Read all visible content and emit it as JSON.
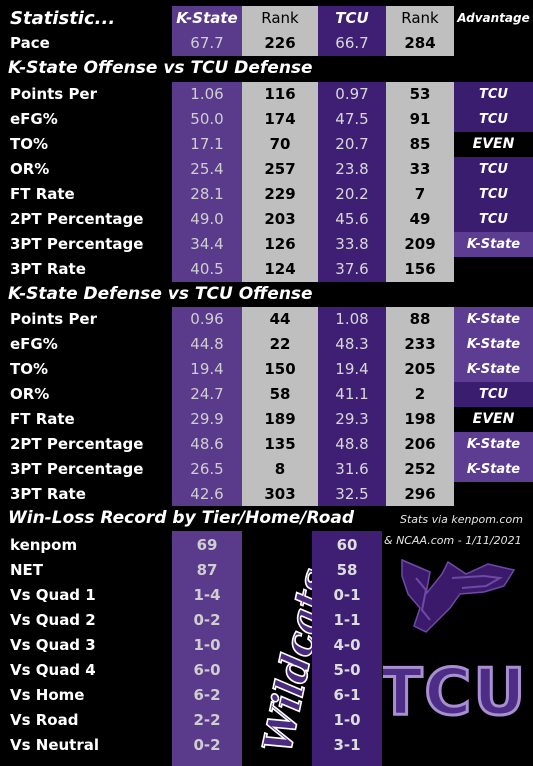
{
  "header": {
    "statistic": "Statistic...",
    "kstate": "K-State",
    "rank": "Rank",
    "tcu": "TCU",
    "rank2": "Rank",
    "advantage": "Advantage"
  },
  "pace": {
    "label": "Pace",
    "ks": "67.7",
    "ks_rank": "226",
    "tcu": "66.7",
    "tcu_rank": "284"
  },
  "section1_title": "K-State Offense vs TCU Defense",
  "offense": [
    {
      "label": "Points Per Possession",
      "ks": "1.06",
      "ks_rank": "116",
      "tcu": "0.97",
      "tcu_rank": "53",
      "adv": "TCU",
      "adv_type": "tcu"
    },
    {
      "label": "eFG%",
      "ks": "50.0",
      "ks_rank": "174",
      "tcu": "47.5",
      "tcu_rank": "91",
      "adv": "TCU",
      "adv_type": "tcu"
    },
    {
      "label": "TO%",
      "ks": "17.1",
      "ks_rank": "70",
      "tcu": "20.7",
      "tcu_rank": "85",
      "adv": "EVEN",
      "adv_type": "even"
    },
    {
      "label": "OR%",
      "ks": "25.4",
      "ks_rank": "257",
      "tcu": "23.8",
      "tcu_rank": "33",
      "adv": "TCU",
      "adv_type": "tcu"
    },
    {
      "label": "FT Rate",
      "ks": "28.1",
      "ks_rank": "229",
      "tcu": "20.2",
      "tcu_rank": "7",
      "adv": "TCU",
      "adv_type": "tcu"
    },
    {
      "label": "2PT Percentage",
      "ks": "49.0",
      "ks_rank": "203",
      "tcu": "45.6",
      "tcu_rank": "49",
      "adv": "TCU",
      "adv_type": "tcu"
    },
    {
      "label": "3PT Percentage",
      "ks": "34.4",
      "ks_rank": "126",
      "tcu": "33.8",
      "tcu_rank": "209",
      "adv": "K-State",
      "adv_type": "ks"
    },
    {
      "label": "3PT Rate",
      "ks": "40.5",
      "ks_rank": "124",
      "tcu": "37.6",
      "tcu_rank": "156",
      "adv": "",
      "adv_type": "none"
    }
  ],
  "section2_title": "K-State Defense vs TCU Offense",
  "defense": [
    {
      "label": "Points Per Possession",
      "ks": "0.96",
      "ks_rank": "44",
      "tcu": "1.08",
      "tcu_rank": "88",
      "adv": "K-State",
      "adv_type": "ks"
    },
    {
      "label": "eFG%",
      "ks": "44.8",
      "ks_rank": "22",
      "tcu": "48.3",
      "tcu_rank": "233",
      "adv": "K-State",
      "adv_type": "ks"
    },
    {
      "label": "TO%",
      "ks": "19.4",
      "ks_rank": "150",
      "tcu": "19.4",
      "tcu_rank": "205",
      "adv": "K-State",
      "adv_type": "ks"
    },
    {
      "label": "OR%",
      "ks": "24.7",
      "ks_rank": "58",
      "tcu": "41.1",
      "tcu_rank": "2",
      "adv": "TCU",
      "adv_type": "tcu"
    },
    {
      "label": "FT Rate",
      "ks": "29.9",
      "ks_rank": "189",
      "tcu": "29.3",
      "tcu_rank": "198",
      "adv": "EVEN",
      "adv_type": "even"
    },
    {
      "label": "2PT Percentage",
      "ks": "48.6",
      "ks_rank": "135",
      "tcu": "48.8",
      "tcu_rank": "206",
      "adv": "K-State",
      "adv_type": "ks"
    },
    {
      "label": "3PT Percentage",
      "ks": "26.5",
      "ks_rank": "8",
      "tcu": "31.6",
      "tcu_rank": "252",
      "adv": "K-State",
      "adv_type": "ks"
    },
    {
      "label": "3PT Rate",
      "ks": "42.6",
      "ks_rank": "303",
      "tcu": "32.5",
      "tcu_rank": "296",
      "adv": "",
      "adv_type": "none"
    }
  ],
  "section3_title": "Win-Loss Record by Tier/Home/Road",
  "credit_line1": "Stats via kenpom.com",
  "credit_line2": "& NCAA.com - 1/11/2021",
  "records": [
    {
      "label": "kenpom",
      "ks": "69",
      "tcu": "60"
    },
    {
      "label": "NET",
      "ks": "87",
      "tcu": "58"
    },
    {
      "label": "Vs Quad 1",
      "ks": "1-4",
      "tcu": "0-1"
    },
    {
      "label": "Vs Quad 2",
      "ks": "0-2",
      "tcu": "1-1"
    },
    {
      "label": "Vs Quad 3",
      "ks": "1-0",
      "tcu": "4-0"
    },
    {
      "label": "Vs Quad 4",
      "ks": "6-0",
      "tcu": "5-0"
    },
    {
      "label": "Vs Home",
      "ks": "6-2",
      "tcu": "6-1"
    },
    {
      "label": "Vs Road",
      "ks": "2-2",
      "tcu": "1-0"
    },
    {
      "label": "Vs Neutral",
      "ks": "0-2",
      "tcu": "3-1"
    }
  ],
  "logos": {
    "wildcats": "Wildcats",
    "tcu": "TCU"
  },
  "colors": {
    "ks_purple": "#5a3a8a",
    "tcu_purple": "#3f1f73",
    "rank_gray": "#bfbfbf"
  }
}
